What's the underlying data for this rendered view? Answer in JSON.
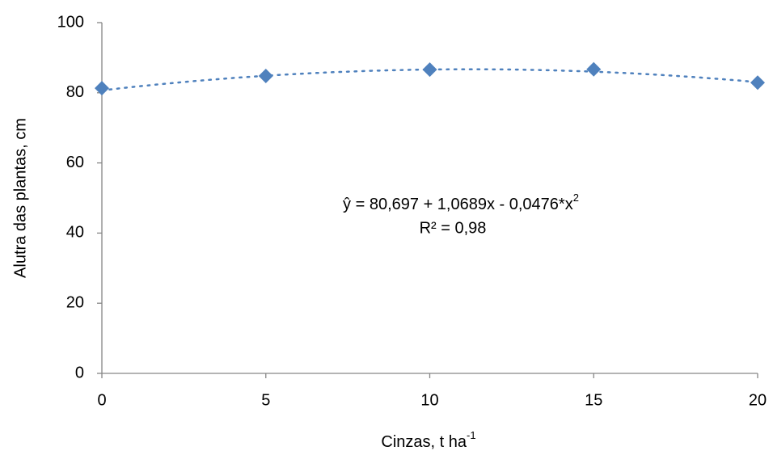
{
  "chart_data": {
    "type": "scatter",
    "y_label": "Alutra das plantas, cm",
    "x_label": "Cinzas, t ha",
    "x_label_sup": "-1",
    "annotation": {
      "equation": "ŷ  = 80,697 + 1,0689x - 0,0476*x",
      "equation_sup": "2",
      "r2": "R² = 0,98"
    },
    "series": [
      {
        "color": "#4f81bd",
        "x": [
          0,
          5,
          10,
          15,
          20
        ],
        "values": [
          81.3,
          84.8,
          86.6,
          86.7,
          82.9
        ]
      }
    ],
    "trendline": {
      "coefficients": [
        80.697,
        1.0689,
        -0.0476
      ],
      "style": "dotted"
    },
    "xlim": [
      0,
      20
    ],
    "xticks": [
      0,
      5,
      10,
      15,
      20
    ],
    "ylim": [
      0,
      100
    ],
    "yticks": [
      0,
      20,
      40,
      60,
      80,
      100
    ],
    "grid": false
  }
}
